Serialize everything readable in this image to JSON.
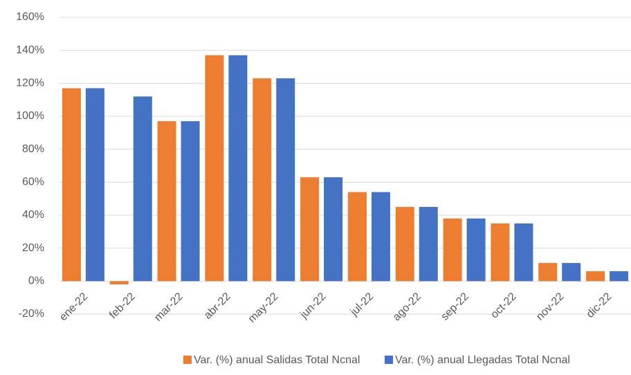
{
  "chart_data": {
    "type": "bar",
    "categories": [
      "ene-22",
      "feb-22",
      "mar-22",
      "abr-22",
      "may-22",
      "jun-22",
      "jul-22",
      "ago-22",
      "sep-22",
      "oct-22",
      "nov-22",
      "dic-22"
    ],
    "series": [
      {
        "name": "Var. (%) anual Salidas Total Ncnal",
        "color": "#ed7d31",
        "values": [
          117,
          -2,
          97,
          137,
          123,
          63,
          54,
          45,
          38,
          35,
          11,
          6
        ]
      },
      {
        "name": "Var. (%) anual Llegadas Total Ncnal",
        "color": "#4472c4",
        "values": [
          117,
          112,
          97,
          137,
          123,
          63,
          54,
          45,
          38,
          35,
          11,
          6
        ]
      }
    ],
    "ylim": [
      -20,
      160
    ],
    "yticks": [
      {
        "value": -20,
        "label": "-20%"
      },
      {
        "value": 0,
        "label": "0%"
      },
      {
        "value": 20,
        "label": "20%"
      },
      {
        "value": 40,
        "label": "40%"
      },
      {
        "value": 60,
        "label": "60%"
      },
      {
        "value": 80,
        "label": "80%"
      },
      {
        "value": 100,
        "label": "100%"
      },
      {
        "value": 120,
        "label": "120%"
      },
      {
        "value": 140,
        "label": "140%"
      },
      {
        "value": 160,
        "label": "160%"
      }
    ],
    "grid": true,
    "legend": "bottom"
  }
}
